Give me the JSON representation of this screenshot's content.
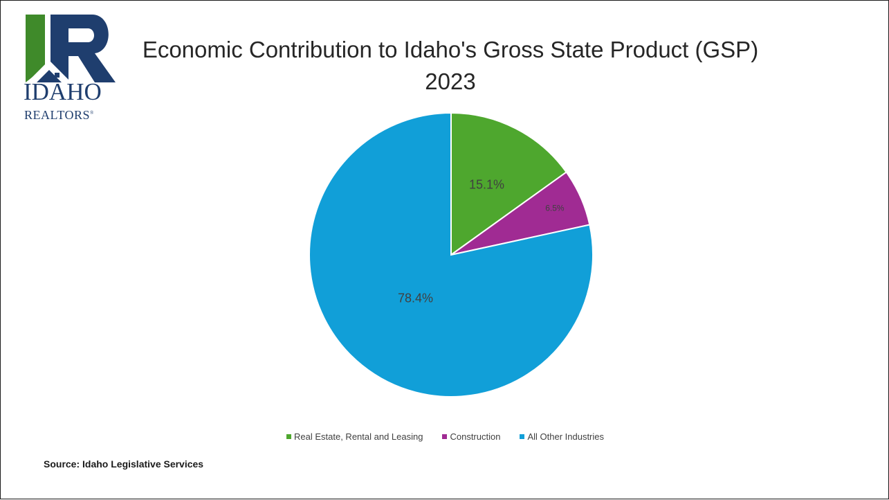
{
  "logo": {
    "line1": "IDAHO",
    "line2": "REALTORS",
    "reg": "®",
    "green": "#3f8a2a",
    "blue": "#1f3e6e"
  },
  "chart_data": {
    "type": "pie",
    "title_line1": "Economic Contribution to Idaho's Gross State Product (GSP)",
    "title_line2": "2023",
    "start_angle": "12 o'clock, clockwise",
    "slices": [
      {
        "name": "Real Estate, Rental and Leasing",
        "value": 15.1,
        "label": "15.1%",
        "color": "#4ea72e"
      },
      {
        "name": "Construction",
        "value": 6.5,
        "label": "6.5%",
        "color": "#a02b93"
      },
      {
        "name": "All Other Industries",
        "value": 78.4,
        "label": "78.4%",
        "color": "#119fd8"
      }
    ],
    "legend_position": "bottom"
  },
  "source": "Source: Idaho Legislative Services"
}
